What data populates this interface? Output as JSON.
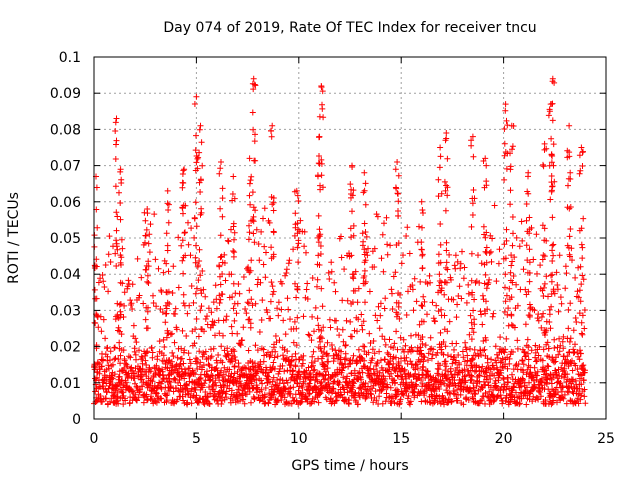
{
  "chart_data": {
    "type": "scatter",
    "title": "Day 074 of 2019, Rate Of TEC Index for receiver tncu",
    "xlabel": "GPS time / hours",
    "ylabel": "ROTI / TECUs",
    "xlim": [
      0,
      25
    ],
    "ylim": [
      0,
      0.1
    ],
    "xticks": [
      "0",
      "5",
      "10",
      "15",
      "20",
      "25"
    ],
    "yticks": [
      "0",
      "0.01",
      "0.02",
      "0.03",
      "0.04",
      "0.05",
      "0.06",
      "0.07",
      "0.08",
      "0.09",
      "0.1"
    ],
    "grid": true,
    "marker": "+",
    "series": [
      {
        "name": "ROTI",
        "color": "#ff0000",
        "baseline_range": [
          0.004,
          0.018
        ],
        "peaks": [
          {
            "x": 0.1,
            "y": 0.067
          },
          {
            "x": 1.1,
            "y": 0.083
          },
          {
            "x": 1.3,
            "y": 0.069
          },
          {
            "x": 2.6,
            "y": 0.058
          },
          {
            "x": 3.6,
            "y": 0.063
          },
          {
            "x": 4.4,
            "y": 0.069
          },
          {
            "x": 5.0,
            "y": 0.089
          },
          {
            "x": 5.2,
            "y": 0.081
          },
          {
            "x": 6.2,
            "y": 0.071
          },
          {
            "x": 6.8,
            "y": 0.067
          },
          {
            "x": 7.6,
            "y": 0.072
          },
          {
            "x": 7.8,
            "y": 0.094
          },
          {
            "x": 8.7,
            "y": 0.081
          },
          {
            "x": 9.9,
            "y": 0.063
          },
          {
            "x": 11.1,
            "y": 0.092
          },
          {
            "x": 11.0,
            "y": 0.078
          },
          {
            "x": 12.6,
            "y": 0.07
          },
          {
            "x": 13.2,
            "y": 0.068
          },
          {
            "x": 14.8,
            "y": 0.071
          },
          {
            "x": 16.0,
            "y": 0.06
          },
          {
            "x": 16.9,
            "y": 0.075
          },
          {
            "x": 17.2,
            "y": 0.079
          },
          {
            "x": 18.5,
            "y": 0.078
          },
          {
            "x": 19.1,
            "y": 0.072
          },
          {
            "x": 20.1,
            "y": 0.087
          },
          {
            "x": 20.4,
            "y": 0.081
          },
          {
            "x": 21.2,
            "y": 0.068
          },
          {
            "x": 22.0,
            "y": 0.076
          },
          {
            "x": 22.4,
            "y": 0.094
          },
          {
            "x": 22.3,
            "y": 0.087
          },
          {
            "x": 23.2,
            "y": 0.081
          },
          {
            "x": 23.8,
            "y": 0.075
          }
        ]
      }
    ]
  }
}
